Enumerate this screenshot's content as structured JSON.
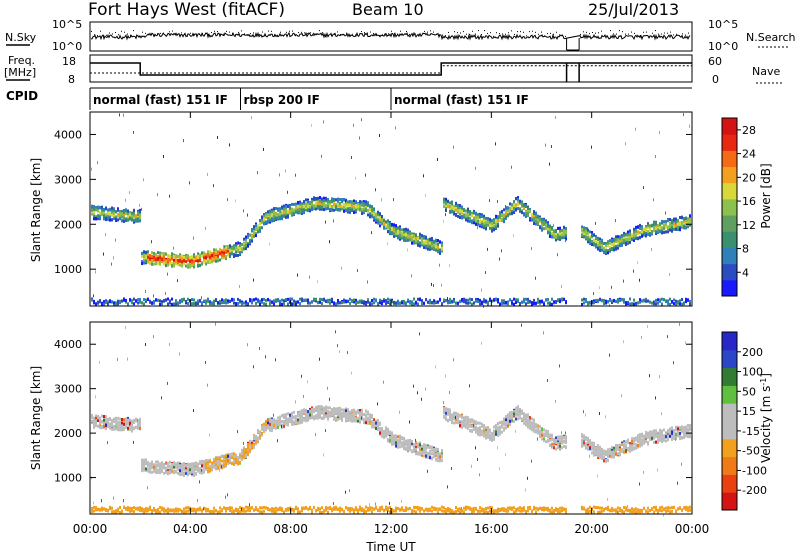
{
  "header": {
    "station": "Fort Hays West (fitACF)",
    "beam": "Beam 10",
    "date": "25/Jul/2013"
  },
  "side_labels": {
    "nsky": "N.Sky",
    "freq": "Freq.",
    "freq_unit": "[MHz]",
    "cpid": "CPID",
    "nsearch": "N.Search",
    "nave": "Nave"
  },
  "cpid_segments": [
    {
      "start": 0,
      "end": 6,
      "label": "normal (fast) 151 IF"
    },
    {
      "start": 6,
      "end": 12,
      "label": "rbsp 200 IF"
    },
    {
      "start": 12,
      "end": 24,
      "label": "normal (fast) 151 IF"
    }
  ],
  "colors": {
    "power": [
      "#1a1aff",
      "#2a4cc0",
      "#2f7fb8",
      "#3a8f6f",
      "#5fa060",
      "#8cc04f",
      "#d7d83a",
      "#f2a020",
      "#f56a14",
      "#e82810",
      "#d41414"
    ],
    "velocity": [
      "#2828c8",
      "#2c46c8",
      "#327c32",
      "#5fc040",
      "#bdbdbd",
      "#bdbdbd",
      "#f2a020",
      "#f07a18",
      "#e84010",
      "#d41414"
    ]
  },
  "chart_data": [
    {
      "type": "line",
      "panel": "nsky-nsearch",
      "left_ticks": [
        "10^5",
        "10^0"
      ],
      "right_ticks": [
        "10^5",
        "10^0"
      ],
      "series": [
        {
          "name": "N.Sky"
        },
        {
          "name": "N.Search"
        }
      ],
      "data_gaps": [
        [
          19,
          19.5
        ]
      ]
    },
    {
      "type": "line",
      "panel": "freq-nave",
      "left_ticks": [
        18,
        8
      ],
      "right_ticks": [
        60,
        0
      ],
      "series": [
        {
          "name": "Freq.",
          "points": [
            [
              0,
              15.5
            ],
            [
              2,
              15.5
            ],
            [
              2,
              10.5
            ],
            [
              14,
              10.5
            ],
            [
              14,
              15.5
            ],
            [
              19,
              15.5
            ],
            [
              19.5,
              15.5
            ],
            [
              24,
              15.5
            ]
          ]
        },
        {
          "name": "Nave",
          "points": [
            [
              0,
              20
            ],
            [
              2,
              20
            ],
            [
              2,
              20
            ],
            [
              14,
              20
            ],
            [
              14,
              38
            ],
            [
              24,
              38
            ]
          ]
        }
      ],
      "data_gaps": [
        [
          19,
          19.5
        ]
      ]
    },
    {
      "type": "heatmap",
      "panel": "power",
      "xlabel": "",
      "ylabel": "Slant Range [km]",
      "xlim": [
        0,
        24
      ],
      "ylim": [
        180,
        4500
      ],
      "yticks": [
        1000,
        2000,
        3000,
        4000
      ],
      "colorbar": {
        "label": "Power [dB]",
        "ticks": [
          4,
          8,
          12,
          16,
          20,
          24,
          28
        ],
        "range": [
          0,
          30
        ]
      },
      "echo_band_km": [
        [
          0,
          2300
        ],
        [
          2,
          2200
        ],
        [
          2,
          1300
        ],
        [
          4,
          1200
        ],
        [
          6,
          1500
        ],
        [
          7,
          2200
        ],
        [
          9,
          2500
        ],
        [
          11,
          2400
        ],
        [
          12,
          1900
        ],
        [
          14,
          1500
        ],
        [
          14,
          2500
        ],
        [
          16,
          2000
        ],
        [
          17,
          2500
        ],
        [
          18.5,
          1800
        ],
        [
          19.5,
          1900
        ],
        [
          20.5,
          1500
        ],
        [
          22,
          1900
        ],
        [
          24,
          2100
        ]
      ]
    },
    {
      "type": "heatmap",
      "panel": "velocity",
      "xlabel": "Time UT",
      "ylabel": "Slant Range [km]",
      "xlim": [
        0,
        24
      ],
      "ylim": [
        180,
        4500
      ],
      "yticks": [
        1000,
        2000,
        3000,
        4000
      ],
      "xticks": [
        "00:00",
        "04:00",
        "08:00",
        "12:00",
        "16:00",
        "20:00",
        "00:00"
      ],
      "colorbar": {
        "label": "Velocity [m s^-1]",
        "ticks": [
          200,
          100,
          50,
          15,
          -15,
          -50,
          -100,
          -200
        ]
      }
    }
  ]
}
